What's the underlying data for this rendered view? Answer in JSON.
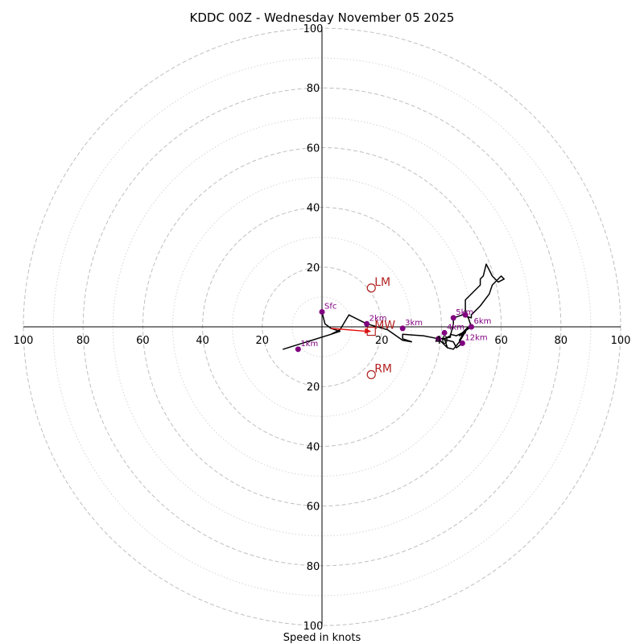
{
  "chart_data": {
    "type": "hodograph",
    "title": "KDDC 00Z - Wednesday November 05 2025",
    "xlabel": "Speed in knots",
    "axis_range": [
      -100,
      100
    ],
    "ring_step_major": 20,
    "ring_step_minor": 10,
    "x_tick_labels": [
      "100",
      "80",
      "60",
      "40",
      "20",
      "20",
      "40",
      "60",
      "80",
      "100"
    ],
    "y_tick_labels": [
      "100",
      "80",
      "60",
      "40",
      "20",
      "20",
      "40",
      "60",
      "80",
      "100"
    ],
    "x_ticks": [
      -100,
      -80,
      -60,
      -40,
      -20,
      20,
      40,
      60,
      80,
      100
    ],
    "y_ticks": [
      100,
      80,
      60,
      40,
      20,
      -20,
      -40,
      -60,
      -80,
      -100
    ],
    "hodograph_trace": [
      [
        0,
        5
      ],
      [
        1,
        1
      ],
      [
        3,
        -0.5
      ],
      [
        6,
        -1.5
      ],
      [
        3,
        -2.5
      ],
      [
        -13,
        -7.5
      ],
      [
        3,
        -2.5
      ],
      [
        6,
        -1
      ],
      [
        9,
        4
      ],
      [
        15,
        1
      ],
      [
        22,
        -1
      ],
      [
        27,
        -4.5
      ],
      [
        30,
        -5
      ],
      [
        27,
        -4
      ],
      [
        27,
        -2.5
      ],
      [
        34,
        -3
      ],
      [
        39,
        -4
      ],
      [
        40,
        -5
      ],
      [
        42,
        -7
      ],
      [
        41,
        -4
      ],
      [
        43,
        -3
      ],
      [
        44,
        1
      ],
      [
        44,
        3
      ],
      [
        47,
        4
      ],
      [
        50,
        3
      ],
      [
        50,
        4
      ],
      [
        53,
        7
      ],
      [
        56,
        11
      ],
      [
        57,
        14
      ],
      [
        60,
        17
      ],
      [
        61,
        16
      ],
      [
        59,
        15
      ],
      [
        57,
        17
      ],
      [
        56,
        19
      ],
      [
        55,
        21
      ],
      [
        54,
        17
      ],
      [
        53,
        16
      ],
      [
        53,
        14
      ],
      [
        51,
        12
      ],
      [
        48,
        9
      ],
      [
        48,
        4
      ],
      [
        49,
        3
      ],
      [
        50,
        0
      ],
      [
        47,
        -2
      ],
      [
        45,
        -3
      ],
      [
        43,
        -2.5
      ],
      [
        43,
        -3.5
      ],
      [
        40,
        -4
      ],
      [
        44,
        -5
      ],
      [
        45,
        -7
      ],
      [
        47,
        -5.5
      ],
      [
        46,
        -4.5
      ],
      [
        48,
        -1
      ],
      [
        46,
        -3
      ],
      [
        48,
        -2
      ],
      [
        46,
        -3
      ],
      [
        49,
        0
      ],
      [
        46,
        -5
      ],
      [
        44,
        -7.5
      ],
      [
        42,
        -7
      ]
    ],
    "height_markers": [
      {
        "label": "Sfc",
        "u": 0,
        "v": 5
      },
      {
        "label": "1km",
        "u": -8,
        "v": -7.5
      },
      {
        "label": "2km",
        "u": 15,
        "v": 1
      },
      {
        "label": "3km",
        "u": 27,
        "v": -0.5
      },
      {
        "label": "4km",
        "u": 41,
        "v": -2
      },
      {
        "label": "5km",
        "u": 44,
        "v": 3
      },
      {
        "label": "6km",
        "u": 50,
        "v": 0
      },
      {
        "label": "",
        "u": 48,
        "v": 4
      },
      {
        "label": "",
        "u": 39,
        "v": -4
      },
      {
        "label": "12km",
        "u": 47,
        "v": -5.5
      }
    ],
    "motion_markers": [
      {
        "label": "LM",
        "u": 16.5,
        "v": 13,
        "shape": "circle"
      },
      {
        "label": "MW",
        "u": 16.5,
        "v": -1.5,
        "shape": "square"
      },
      {
        "label": "RM",
        "u": 16.5,
        "v": -16,
        "shape": "circle"
      }
    ],
    "shear_vector": {
      "from": [
        3,
        -0.5
      ],
      "to": [
        16.5,
        -1.5
      ]
    },
    "colors": {
      "trace": "#000000",
      "height_marker": "#800080",
      "motion_marker": "#b22222",
      "shear_vector": "#e8100d",
      "ring_major": "#bfbfbf",
      "ring_minor": "#d6d6d6",
      "axis": "#000000"
    },
    "grid": true
  }
}
